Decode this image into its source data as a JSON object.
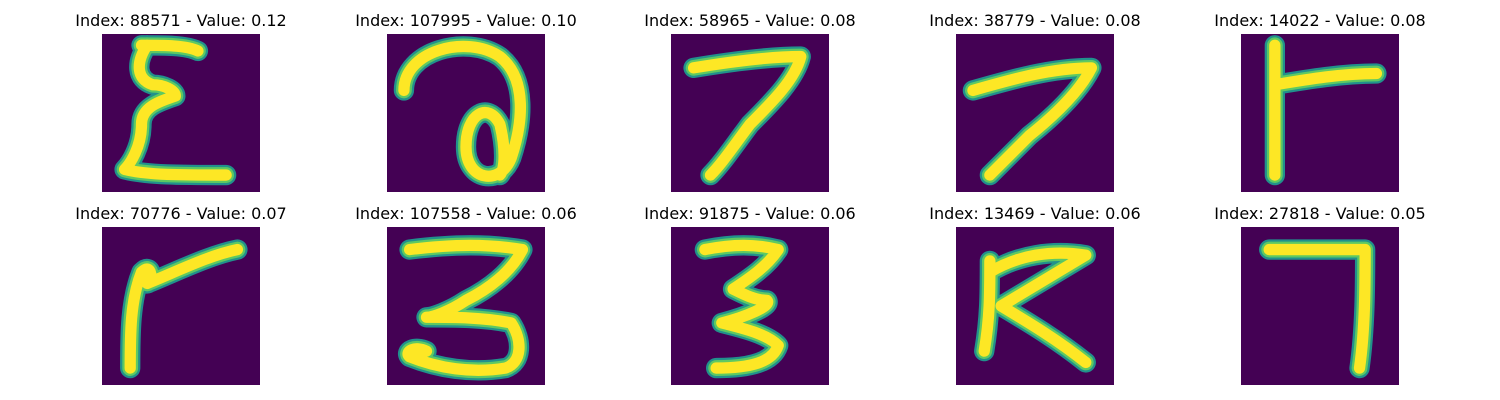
{
  "chart_data": {
    "type": "image-grid",
    "rows": 2,
    "columns": 5,
    "colormap": "viridis",
    "colors": {
      "background": "#440154",
      "stroke_core": "#fde725",
      "stroke_edge": "#21918c",
      "stroke_mid": "#5ec962"
    },
    "panels": [
      {
        "title": "Index: 88571 - Value: 0.12",
        "index": 88571,
        "value": 0.12,
        "glyph": "epsilon"
      },
      {
        "title": "Index: 107995 - Value: 0.10",
        "index": 107995,
        "value": 0.1,
        "glyph": "loop-a"
      },
      {
        "title": "Index: 58965 - Value: 0.08",
        "index": 58965,
        "value": 0.08,
        "glyph": "seven"
      },
      {
        "title": "Index: 38779 - Value: 0.08",
        "index": 38779,
        "value": 0.08,
        "glyph": "slant-seven"
      },
      {
        "title": "Index: 14022 - Value: 0.08",
        "index": 14022,
        "value": 0.08,
        "glyph": "vertical-with-arm"
      },
      {
        "title": "Index: 70776 - Value: 0.07",
        "index": 70776,
        "value": 0.07,
        "glyph": "flag-seven"
      },
      {
        "title": "Index: 107558 - Value: 0.06",
        "index": 107558,
        "value": 0.06,
        "glyph": "three-wide"
      },
      {
        "title": "Index: 91875 - Value: 0.06",
        "index": 91875,
        "value": 0.06,
        "glyph": "three-narrow"
      },
      {
        "title": "Index: 13469 - Value: 0.06",
        "index": 13469,
        "value": 0.06,
        "glyph": "k-shape"
      },
      {
        "title": "Index: 27818 - Value: 0.05",
        "index": 27818,
        "value": 0.05,
        "glyph": "hook-seven"
      }
    ]
  }
}
